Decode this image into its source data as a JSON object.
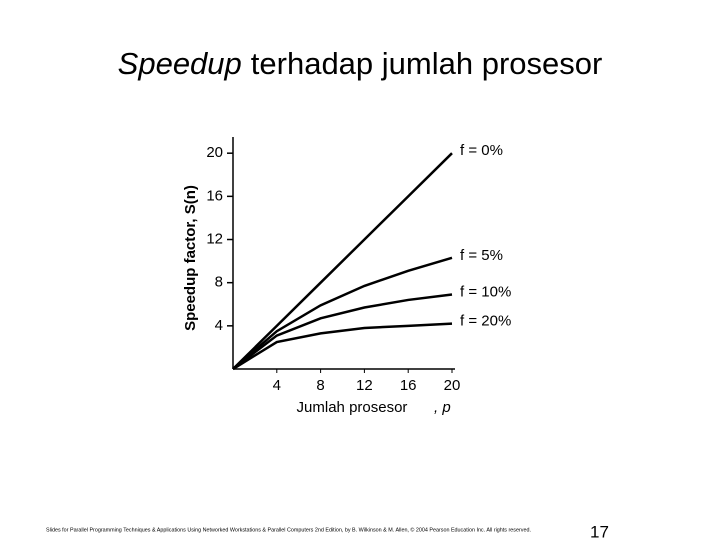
{
  "chart_data": {
    "type": "line",
    "title_italic": "Speedup",
    "title": "terhadap jumlah prosesor",
    "y_label": "Speedup factor, S(n)",
    "x_label": "Jumlah prosesor",
    "x_label_var": ", p",
    "x": [
      0,
      4,
      8,
      12,
      16,
      20
    ],
    "series": [
      {
        "name": "f = 0%",
        "color": "#000000",
        "values": [
          0,
          4,
          8,
          12,
          16,
          20
        ]
      },
      {
        "name": "f = 5%",
        "color": "#000000",
        "values": [
          0,
          3.5,
          5.9,
          7.7,
          9.1,
          10.3
        ]
      },
      {
        "name": "f = 10%",
        "color": "#000000",
        "values": [
          0,
          3.1,
          4.7,
          5.7,
          6.4,
          6.9
        ]
      },
      {
        "name": "f = 20%",
        "color": "#000000",
        "values": [
          0,
          2.5,
          3.3,
          3.8,
          4.0,
          4.2
        ]
      }
    ],
    "xlim": [
      0,
      20
    ],
    "ylim": [
      0,
      21.5
    ],
    "xticks": [
      4,
      8,
      12,
      16,
      20
    ],
    "yticks": [
      4,
      8,
      12,
      16,
      20
    ],
    "footer": "Slides for Parallel Programming Techniques & Applications Using Networked Workstations & Parallel Computers 2nd Edition, by B. Wilkinson & M. Allen, © 2004 Pearson Education Inc. All rights reserved.",
    "page_number": "17"
  }
}
